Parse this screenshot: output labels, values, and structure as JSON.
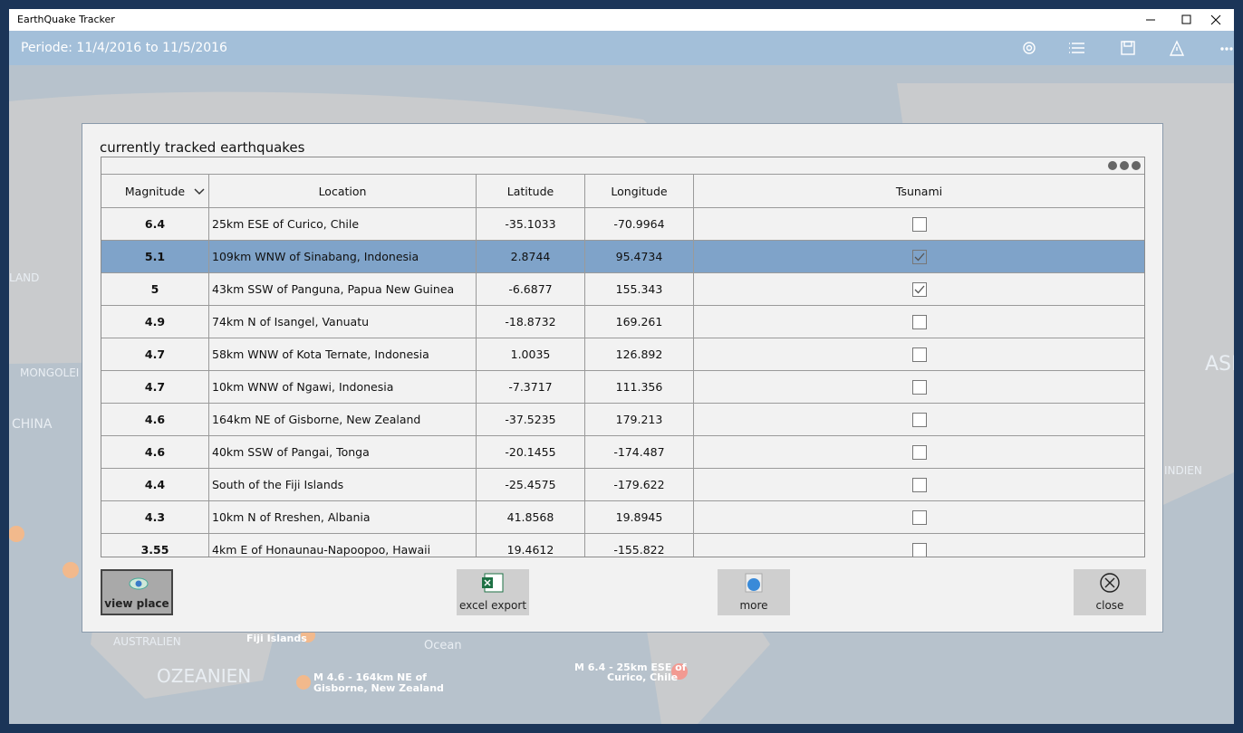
{
  "window": {
    "title": "EarthQuake Tracker"
  },
  "appbar": {
    "period": "Periode: 11/4/2016 to 11/5/2016"
  },
  "map": {
    "labels": [
      "LAND",
      "MONGOLEI",
      "CHINA",
      "ASI",
      "INDIEN",
      "AUSTRALIEN",
      "OZEANIEN",
      "Fiji Islands",
      "Ocean",
      "M 4.6 - 164km NE of",
      "Gisborne, New Zealand",
      "M 6.4 - 25km ESE of",
      "Curico, Chile"
    ]
  },
  "dialog": {
    "title": "currently tracked earthquakes",
    "table": {
      "headers": [
        "Magnitude",
        "Location",
        "Latitude",
        "Longitude",
        "Tsunami"
      ],
      "rows": [
        [
          "6.4",
          "25km ESE of Curico, Chile",
          "-35.1033",
          "-70.9964",
          false
        ],
        [
          "5.1",
          "109km WNW of Sinabang, Indonesia",
          "2.8744",
          "95.4734",
          true
        ],
        [
          "5",
          "43km SSW of Panguna, Papua New Guinea",
          "-6.6877",
          "155.343",
          true
        ],
        [
          "4.9",
          "74km N of Isangel, Vanuatu",
          "-18.8732",
          "169.261",
          false
        ],
        [
          "4.7",
          "58km WNW of Kota Ternate, Indonesia",
          "1.0035",
          "126.892",
          false
        ],
        [
          "4.7",
          "10km WNW of Ngawi, Indonesia",
          "-7.3717",
          "111.356",
          false
        ],
        [
          "4.6",
          "164km NE of Gisborne, New Zealand",
          "-37.5235",
          "179.213",
          false
        ],
        [
          "4.6",
          "40km SSW of Pangai, Tonga",
          "-20.1455",
          "-174.487",
          false
        ],
        [
          "4.4",
          "South of the Fiji Islands",
          "-25.4575",
          "-179.622",
          false
        ],
        [
          "4.3",
          "10km N of Rreshen, Albania",
          "41.8568",
          "19.8945",
          false
        ],
        [
          "3.55",
          "4km E of Honaunau-Napoopoo, Hawaii",
          "19.4612",
          "-155.822",
          false
        ]
      ],
      "selected_row": 1
    },
    "buttons": [
      "view place",
      "excel export",
      "more",
      "close"
    ]
  }
}
